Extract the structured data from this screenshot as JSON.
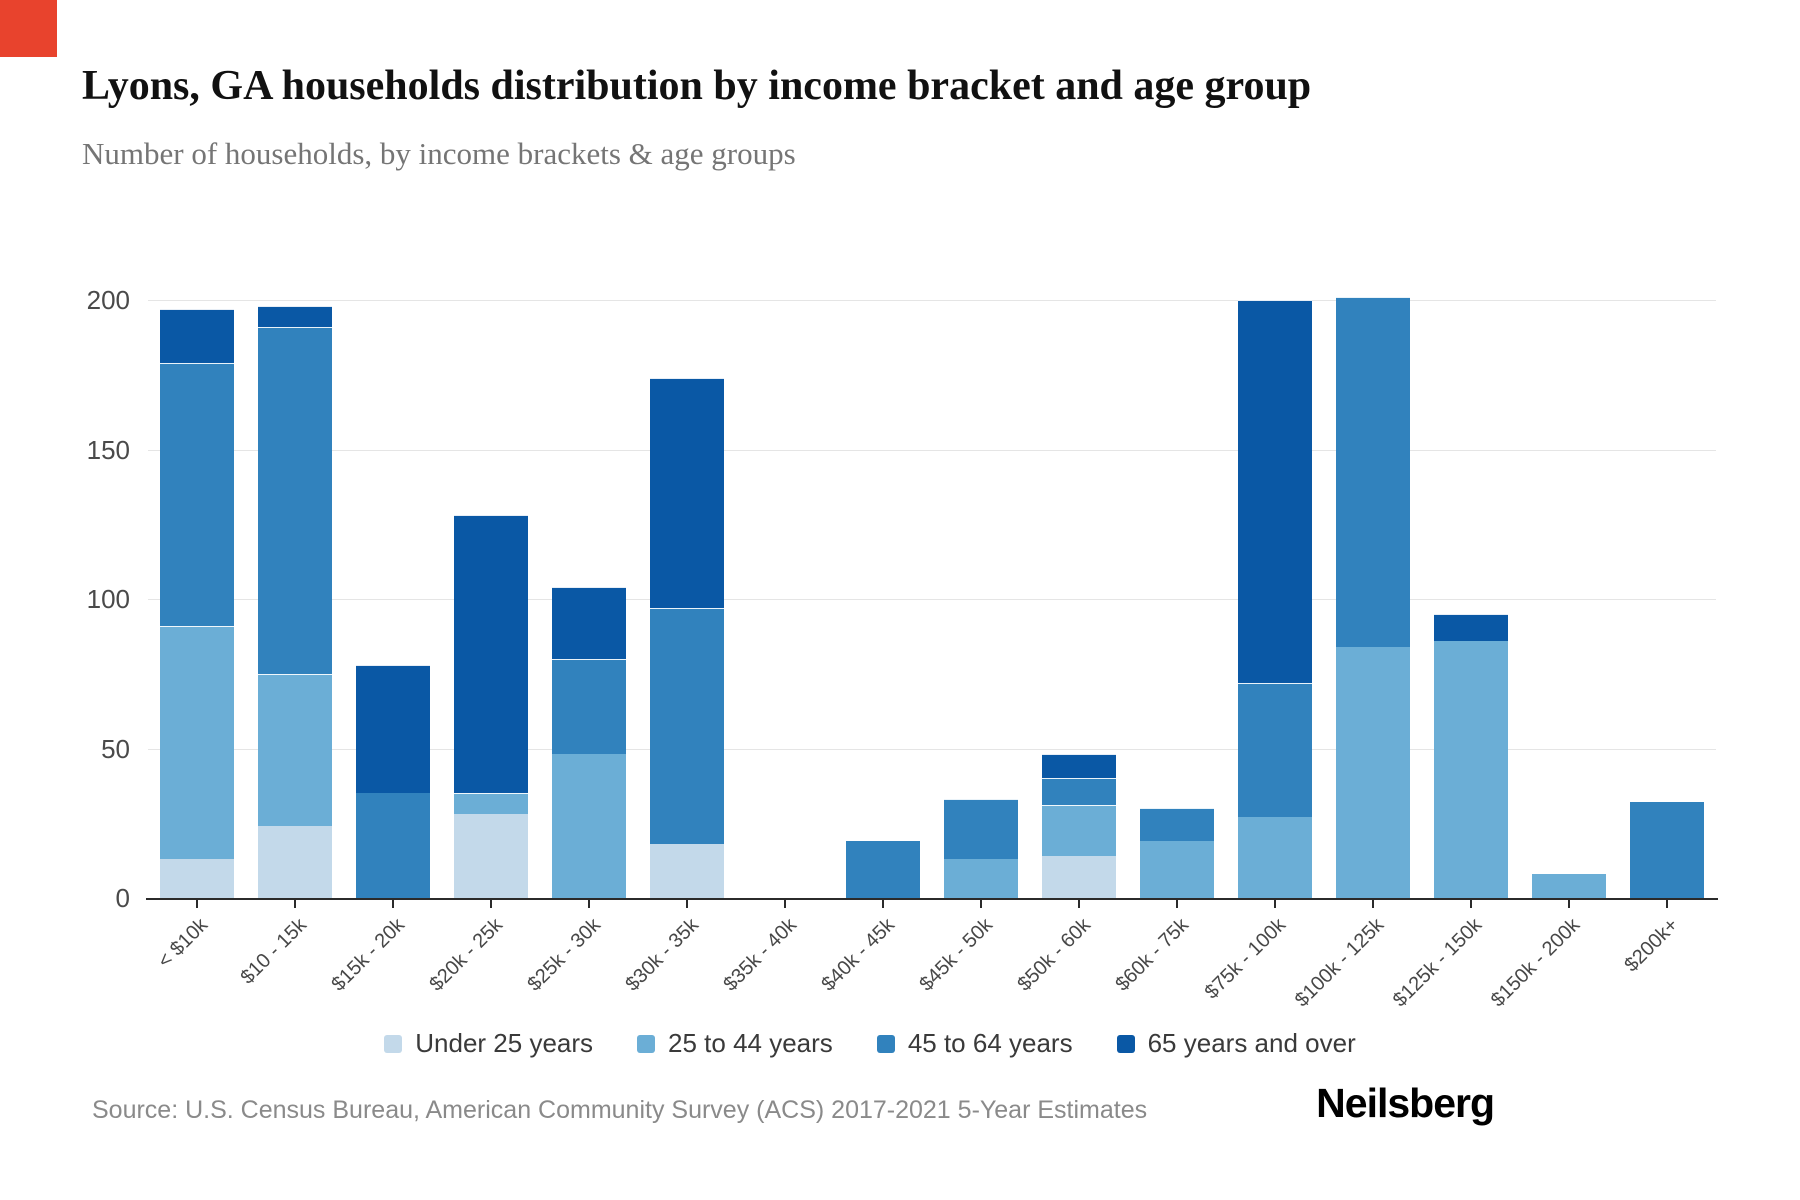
{
  "page": {
    "brand_square_color": "#e8432d",
    "source": "Source: U.S. Census Bureau, American Community Survey (ACS) 2017-2021 5-Year Estimates",
    "logo_text": "Neilsberg"
  },
  "chart_data": {
    "type": "bar",
    "stacked": true,
    "title": "Lyons, GA households distribution by income bracket and age group",
    "subtitle": "Number of households, by income brackets & age groups",
    "xlabel": "",
    "ylabel": "Number of households",
    "ylim": [
      0,
      200
    ],
    "yticks": [
      0,
      50,
      100,
      150,
      200
    ],
    "grid": true,
    "legend_position": "bottom",
    "categories": [
      "< $10k",
      "$10 - 15k",
      "$15k - 20k",
      "$20k - 25k",
      "$25k - 30k",
      "$30k - 35k",
      "$35k - 40k",
      "$40k - 45k",
      "$45k - 50k",
      "$50k - 60k",
      "$60k - 75k",
      "$75k - 100k",
      "$100k - 125k",
      "$125k - 150k",
      "$150k - 200k",
      "$200k+"
    ],
    "series": [
      {
        "name": "Under 25 years",
        "color": "#c3d9ea",
        "values": [
          13,
          24,
          0,
          28,
          0,
          18,
          0,
          0,
          0,
          14,
          0,
          0,
          0,
          0,
          0,
          0
        ]
      },
      {
        "name": "25 to 44 years",
        "color": "#6baed6",
        "values": [
          78,
          51,
          0,
          7,
          48,
          0,
          0,
          0,
          13,
          17,
          19,
          27,
          84,
          86,
          8,
          0
        ]
      },
      {
        "name": "45 to 64 years",
        "color": "#3182bd",
        "values": [
          88,
          116,
          35,
          0,
          32,
          79,
          0,
          19,
          20,
          9,
          11,
          45,
          117,
          0,
          0,
          32
        ]
      },
      {
        "name": "65 years and over",
        "color": "#0a58a5",
        "values": [
          18,
          7,
          43,
          93,
          24,
          77,
          0,
          0,
          0,
          8,
          0,
          128,
          0,
          9,
          0,
          0
        ]
      }
    ]
  }
}
